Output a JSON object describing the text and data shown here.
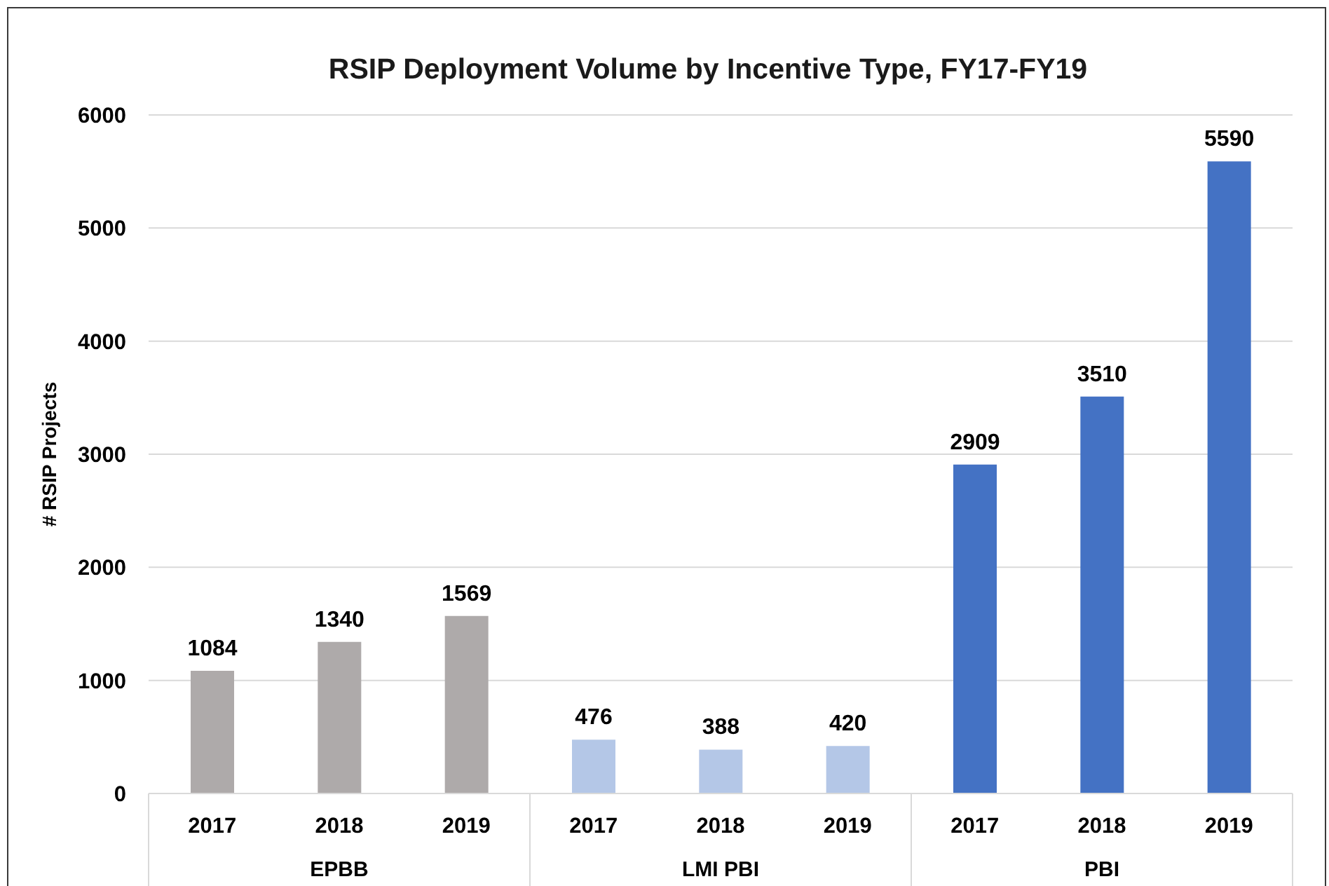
{
  "chart_data": {
    "type": "bar",
    "title": "RSIP Deployment Volume by Incentive Type, FY17-FY19",
    "ylabel": "# RSIP Projects",
    "categories": [
      "2017",
      "2018",
      "2019",
      "2017",
      "2018",
      "2019",
      "2017",
      "2018",
      "2019"
    ],
    "values": [
      1084,
      1340,
      1569,
      476,
      388,
      420,
      2909,
      3510,
      5590
    ],
    "colors": [
      "#aeaaaa",
      "#aeaaaa",
      "#aeaaaa",
      "#b4c7e7",
      "#b4c7e7",
      "#b4c7e7",
      "#4472c4",
      "#4472c4",
      "#4472c4"
    ],
    "annotations": [
      "EPBB",
      "LMI PBI",
      "PBI"
    ],
    "ylim": [
      0,
      6000
    ],
    "yticks": [
      0,
      1000,
      2000,
      3000,
      4000,
      5000,
      6000
    ],
    "grid": "y",
    "data_labels": true
  }
}
